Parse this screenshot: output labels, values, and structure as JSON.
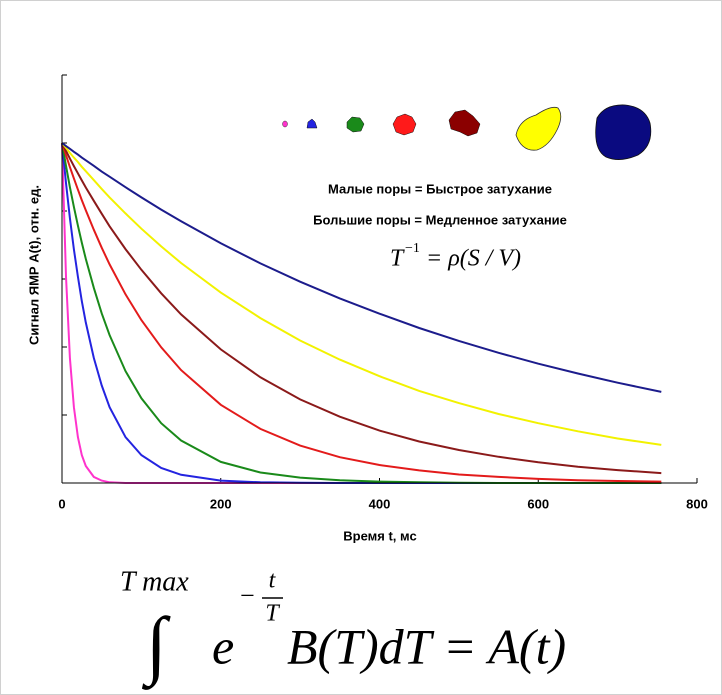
{
  "chart_data": {
    "type": "line",
    "ylabel": "Сигнал ЯМР A(t), отн. ед.",
    "xlabel": "Время t, мс",
    "annotations": [
      "Малые поры  =  Быстрое затухание",
      "Большие поры  =  Медленное затухание"
    ],
    "relation": {
      "base": "T",
      "exponent": "−1",
      "rhs": "= ρ(S / V)"
    },
    "xlim": [
      0,
      800
    ],
    "xticks": [
      0,
      200,
      400,
      600,
      800
    ],
    "ylim": [
      0,
      1.2
    ],
    "yticks": [
      0,
      0.2,
      0.4,
      0.6,
      0.8,
      1.0,
      1.2
    ],
    "x": [
      0,
      5,
      10,
      15,
      20,
      25,
      30,
      40,
      50,
      60,
      80,
      100,
      125,
      150,
      200,
      250,
      300,
      350,
      400,
      450,
      500,
      550,
      600,
      650,
      700,
      755
    ],
    "series": [
      {
        "color": "#1c1c8c",
        "values": [
          1,
          0.991,
          0.983,
          0.974,
          0.966,
          0.957,
          0.949,
          0.933,
          0.916,
          0.901,
          0.87,
          0.84,
          0.804,
          0.77,
          0.705,
          0.646,
          0.592,
          0.543,
          0.498,
          0.456,
          0.418,
          0.383,
          0.351,
          0.322,
          0.295,
          0.268
        ]
      },
      {
        "color": "#f2f200",
        "values": [
          1,
          0.986,
          0.971,
          0.957,
          0.944,
          0.93,
          0.917,
          0.891,
          0.865,
          0.84,
          0.793,
          0.748,
          0.696,
          0.647,
          0.56,
          0.485,
          0.419,
          0.363,
          0.314,
          0.271,
          0.235,
          0.203,
          0.176,
          0.152,
          0.131,
          0.112
        ]
      },
      {
        "color": "#8b1a1a",
        "values": [
          1,
          0.977,
          0.954,
          0.932,
          0.911,
          0.89,
          0.869,
          0.83,
          0.792,
          0.755,
          0.688,
          0.627,
          0.558,
          0.496,
          0.393,
          0.311,
          0.246,
          0.195,
          0.154,
          0.122,
          0.097,
          0.077,
          0.061,
          0.048,
          0.038,
          0.029
        ]
      },
      {
        "color": "#e31b1b",
        "values": [
          1,
          0.964,
          0.929,
          0.896,
          0.863,
          0.832,
          0.802,
          0.745,
          0.692,
          0.643,
          0.555,
          0.479,
          0.399,
          0.332,
          0.23,
          0.159,
          0.11,
          0.076,
          0.053,
          0.037,
          0.025,
          0.018,
          0.012,
          0.008,
          0.006,
          0.004
        ]
      },
      {
        "color": "#1a8a1a",
        "values": [
          1,
          0.933,
          0.87,
          0.812,
          0.757,
          0.707,
          0.659,
          0.574,
          0.499,
          0.435,
          0.329,
          0.249,
          0.176,
          0.125,
          0.062,
          0.031,
          0.016,
          0.008,
          0.004,
          0.002,
          0.001,
          0,
          0,
          0,
          0,
          0
        ]
      },
      {
        "color": "#2424e0",
        "values": [
          1,
          0.882,
          0.779,
          0.687,
          0.607,
          0.535,
          0.472,
          0.368,
          0.287,
          0.223,
          0.135,
          0.082,
          0.044,
          0.024,
          0.007,
          0.002,
          0.001,
          0,
          0,
          0,
          0,
          0,
          0,
          0,
          0,
          0
        ]
      },
      {
        "color": "#ff33cc",
        "values": [
          1,
          0.607,
          0.368,
          0.223,
          0.135,
          0.082,
          0.05,
          0.018,
          0.007,
          0.002,
          0,
          0,
          0,
          0,
          0,
          0,
          0,
          0,
          0,
          0,
          0,
          0,
          0,
          0,
          0,
          0
        ]
      }
    ]
  },
  "formula": {
    "upper_limit": "T max",
    "integral": "∫",
    "base": "e",
    "minus": "−",
    "numerator": "t",
    "denominator": "T",
    "rest": "B(T)dT = A(t)"
  }
}
